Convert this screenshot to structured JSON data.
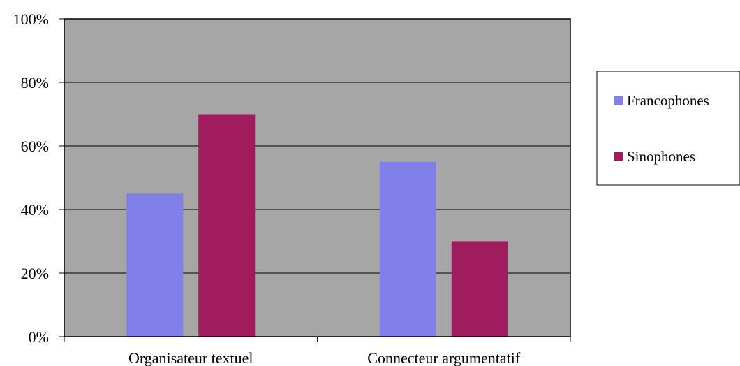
{
  "chart_data": {
    "type": "bar",
    "title": "",
    "xlabel": "",
    "ylabel": "",
    "categories": [
      "Organisateur textuel",
      "Connecteur argumentatif"
    ],
    "series": [
      {
        "name": "Francophones",
        "color": "#8080E8",
        "values": [
          45,
          55
        ]
      },
      {
        "name": "Sinophones",
        "color": "#A01C5E",
        "values": [
          70,
          30
        ]
      }
    ],
    "ylim": [
      0,
      100
    ],
    "yticks": [
      0,
      20,
      40,
      60,
      80,
      100
    ],
    "ytick_labels": [
      "0%",
      "20%",
      "40%",
      "60%",
      "80%",
      "100%"
    ],
    "grid": true,
    "legend_position": "right",
    "plot_background": "#A6A6A6"
  }
}
